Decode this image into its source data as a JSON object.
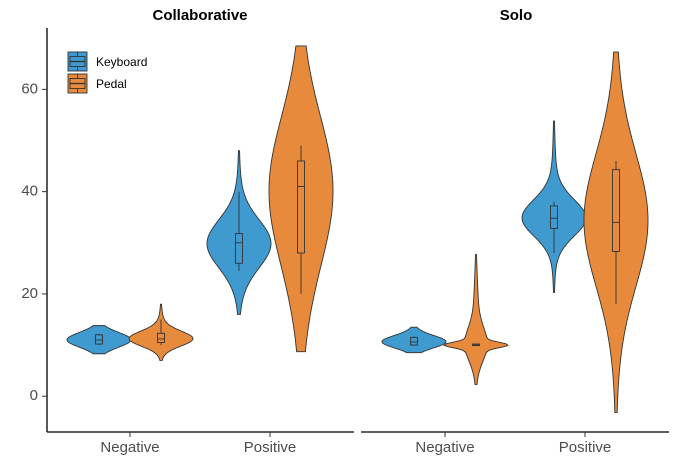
{
  "chart_data": {
    "type": "violin",
    "panels": [
      {
        "title": "Collaborative",
        "groups": [
          {
            "category": "Negative",
            "series": "Keyboard",
            "min": 8.3,
            "q1": 10.2,
            "median": 11.0,
            "q3": 12.0,
            "max": 13.8,
            "box_min": 10.0,
            "box_max": 12.2
          },
          {
            "category": "Negative",
            "series": "Pedal",
            "min": 7.0,
            "q1": 10.5,
            "median": 11.2,
            "q3": 12.3,
            "max": 18.0,
            "box_min": 10.0,
            "box_max": 15.0
          },
          {
            "category": "Positive",
            "series": "Keyboard",
            "min": 16.0,
            "q1": 26.0,
            "median": 30.0,
            "q3": 31.8,
            "max": 48.0,
            "box_min": 24.5,
            "box_max": 40.0
          },
          {
            "category": "Positive",
            "series": "Pedal",
            "min": 8.7,
            "q1": 28.0,
            "median": 41.0,
            "q3": 46.0,
            "max": 68.5,
            "box_min": 20.0,
            "box_max": 49.0
          }
        ]
      },
      {
        "title": "Solo",
        "groups": [
          {
            "category": "Negative",
            "series": "Keyboard",
            "min": 8.5,
            "q1": 10.0,
            "median": 10.6,
            "q3": 11.5,
            "max": 13.5,
            "box_min": 10.0,
            "box_max": 11.7
          },
          {
            "category": "Negative",
            "series": "Pedal",
            "min": 2.3,
            "q1": 9.9,
            "median": 10.0,
            "q3": 10.2,
            "max": 27.7,
            "box_min": 9.9,
            "box_max": 10.2
          },
          {
            "category": "Positive",
            "series": "Keyboard",
            "min": 20.3,
            "q1": 32.8,
            "median": 34.8,
            "q3": 37.2,
            "max": 53.8,
            "box_min": 28.0,
            "box_max": 38.0
          },
          {
            "category": "Positive",
            "series": "Pedal",
            "min": -3.2,
            "q1": 28.3,
            "median": 34.0,
            "q3": 44.3,
            "max": 67.3,
            "box_min": 18.0,
            "box_max": 46.0
          }
        ]
      }
    ],
    "categories": [
      "Negative",
      "Positive"
    ],
    "series": [
      {
        "name": "Keyboard",
        "color": "#3f9ad0"
      },
      {
        "name": "Pedal",
        "color": "#e88a3c"
      }
    ],
    "y_ticks": [
      0,
      20,
      40,
      60
    ],
    "ylim": [
      -7,
      72
    ],
    "legend_position": "top-left",
    "grid": false
  }
}
